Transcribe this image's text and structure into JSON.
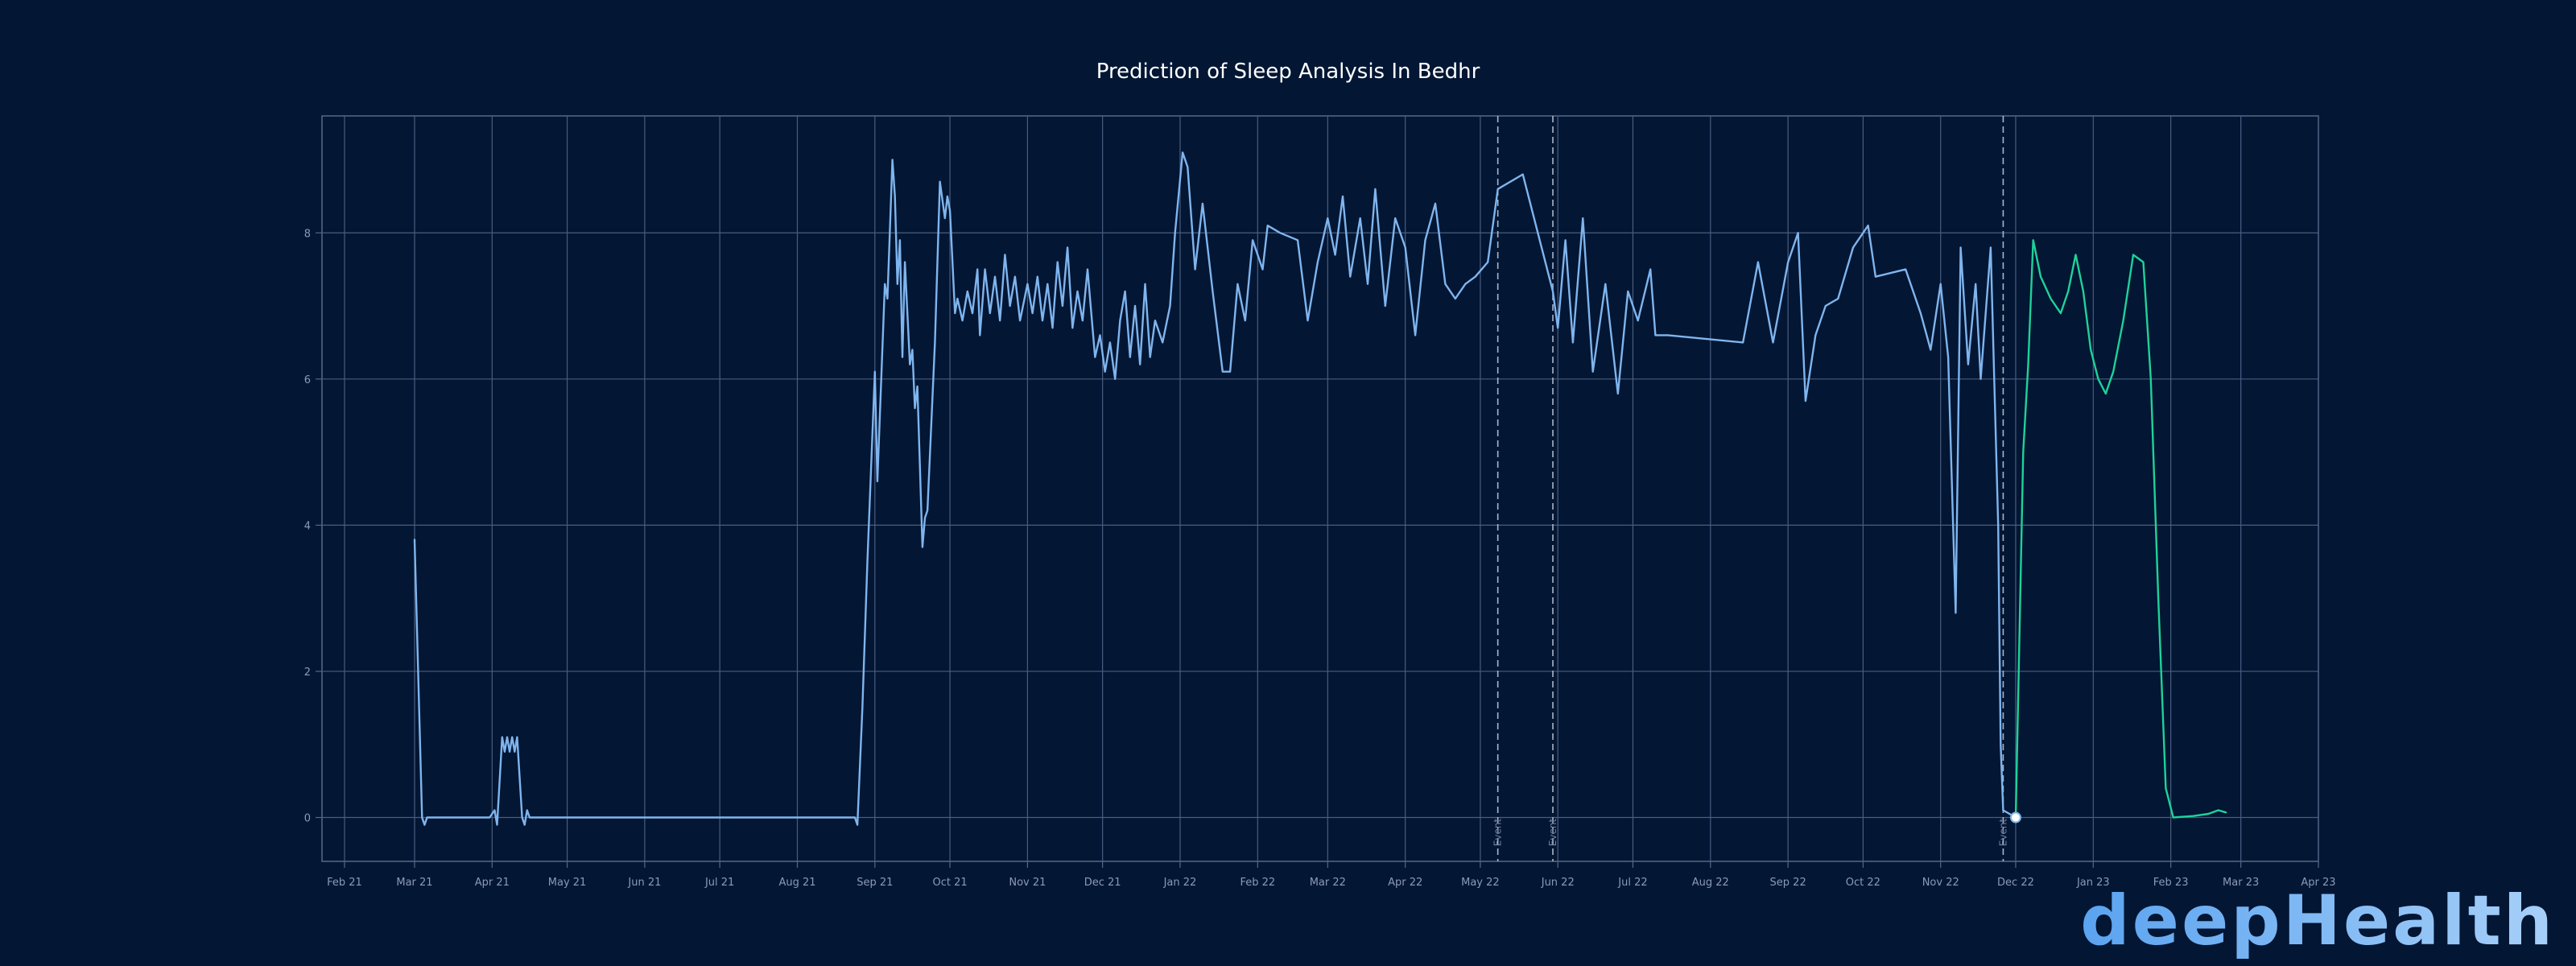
{
  "chart_data": {
    "type": "line",
    "title": "Prediction of Sleep Analysis In Bedhr",
    "xlabel": "",
    "ylabel": "",
    "x_range": [
      "2021-01-23",
      "2023-04-01"
    ],
    "ylim": [
      -0.6,
      9.6
    ],
    "grid": true,
    "legend": "none",
    "y_ticks": [
      0,
      2,
      4,
      6,
      8
    ],
    "x_ticks": [
      {
        "date": "2021-02-01",
        "label": "Feb 21"
      },
      {
        "date": "2021-03-01",
        "label": "Mar 21"
      },
      {
        "date": "2021-04-01",
        "label": "Apr 21"
      },
      {
        "date": "2021-05-01",
        "label": "May 21"
      },
      {
        "date": "2021-06-01",
        "label": "Jun 21"
      },
      {
        "date": "2021-07-01",
        "label": "Jul 21"
      },
      {
        "date": "2021-08-01",
        "label": "Aug 21"
      },
      {
        "date": "2021-09-01",
        "label": "Sep 21"
      },
      {
        "date": "2021-10-01",
        "label": "Oct 21"
      },
      {
        "date": "2021-11-01",
        "label": "Nov 21"
      },
      {
        "date": "2021-12-01",
        "label": "Dec 21"
      },
      {
        "date": "2022-01-01",
        "label": "Jan 22"
      },
      {
        "date": "2022-02-01",
        "label": "Feb 22"
      },
      {
        "date": "2022-03-01",
        "label": "Mar 22"
      },
      {
        "date": "2022-04-01",
        "label": "Apr 22"
      },
      {
        "date": "2022-05-01",
        "label": "May 22"
      },
      {
        "date": "2022-06-01",
        "label": "Jun 22"
      },
      {
        "date": "2022-07-01",
        "label": "Jul 22"
      },
      {
        "date": "2022-08-01",
        "label": "Aug 22"
      },
      {
        "date": "2022-09-01",
        "label": "Sep 22"
      },
      {
        "date": "2022-10-01",
        "label": "Oct 22"
      },
      {
        "date": "2022-11-01",
        "label": "Nov 22"
      },
      {
        "date": "2022-12-01",
        "label": "Dec 22"
      },
      {
        "date": "2023-01-01",
        "label": "Jan 23"
      },
      {
        "date": "2023-02-01",
        "label": "Feb 23"
      },
      {
        "date": "2023-03-01",
        "label": "Mar 23"
      },
      {
        "date": "2023-04-01",
        "label": "Apr 23"
      }
    ],
    "events": [
      {
        "date": "2022-05-08",
        "label": "Event"
      },
      {
        "date": "2022-05-30",
        "label": "Event"
      },
      {
        "date": "2022-11-26",
        "label": "Event"
      }
    ],
    "marker": {
      "date": "2022-12-01",
      "value": 0
    },
    "series": [
      {
        "color": "#7fb5ee",
        "points": [
          [
            "2021-03-01",
            3.8
          ],
          [
            "2021-03-04",
            0.0
          ],
          [
            "2021-03-05",
            -0.1
          ],
          [
            "2021-03-06",
            0.0
          ],
          [
            "2021-03-10",
            0.0
          ],
          [
            "2021-03-31",
            0.0
          ],
          [
            "2021-04-02",
            0.1
          ],
          [
            "2021-04-03",
            -0.1
          ],
          [
            "2021-04-05",
            1.1
          ],
          [
            "2021-04-06",
            0.9
          ],
          [
            "2021-04-07",
            1.1
          ],
          [
            "2021-04-08",
            0.9
          ],
          [
            "2021-04-09",
            1.1
          ],
          [
            "2021-04-10",
            0.9
          ],
          [
            "2021-04-11",
            1.1
          ],
          [
            "2021-04-13",
            0.0
          ],
          [
            "2021-04-14",
            -0.1
          ],
          [
            "2021-04-15",
            0.1
          ],
          [
            "2021-04-16",
            0.0
          ],
          [
            "2021-08-22",
            0.0
          ],
          [
            "2021-08-24",
            0.0
          ],
          [
            "2021-08-25",
            -0.1
          ],
          [
            "2021-08-27",
            1.5
          ],
          [
            "2021-08-29",
            3.5
          ],
          [
            "2021-09-01",
            6.1
          ],
          [
            "2021-09-02",
            4.6
          ],
          [
            "2021-09-05",
            7.3
          ],
          [
            "2021-09-06",
            7.1
          ],
          [
            "2021-09-08",
            9.0
          ],
          [
            "2021-09-09",
            8.5
          ],
          [
            "2021-09-10",
            7.3
          ],
          [
            "2021-09-11",
            7.9
          ],
          [
            "2021-09-12",
            6.3
          ],
          [
            "2021-09-13",
            7.6
          ],
          [
            "2021-09-15",
            6.2
          ],
          [
            "2021-09-16",
            6.4
          ],
          [
            "2021-09-17",
            5.6
          ],
          [
            "2021-09-18",
            5.9
          ],
          [
            "2021-09-20",
            3.7
          ],
          [
            "2021-09-21",
            4.1
          ],
          [
            "2021-09-22",
            4.2
          ],
          [
            "2021-09-25",
            6.5
          ],
          [
            "2021-09-27",
            8.7
          ],
          [
            "2021-09-29",
            8.2
          ],
          [
            "2021-09-30",
            8.5
          ],
          [
            "2021-10-01",
            8.3
          ],
          [
            "2021-10-03",
            6.9
          ],
          [
            "2021-10-04",
            7.1
          ],
          [
            "2021-10-06",
            6.8
          ],
          [
            "2021-10-08",
            7.2
          ],
          [
            "2021-10-10",
            6.9
          ],
          [
            "2021-10-12",
            7.5
          ],
          [
            "2021-10-13",
            6.6
          ],
          [
            "2021-10-15",
            7.5
          ],
          [
            "2021-10-17",
            6.9
          ],
          [
            "2021-10-19",
            7.4
          ],
          [
            "2021-10-21",
            6.8
          ],
          [
            "2021-10-23",
            7.7
          ],
          [
            "2021-10-25",
            7.0
          ],
          [
            "2021-10-27",
            7.4
          ],
          [
            "2021-10-29",
            6.8
          ],
          [
            "2021-11-01",
            7.3
          ],
          [
            "2021-11-03",
            6.9
          ],
          [
            "2021-11-05",
            7.4
          ],
          [
            "2021-11-07",
            6.8
          ],
          [
            "2021-11-09",
            7.3
          ],
          [
            "2021-11-11",
            6.7
          ],
          [
            "2021-11-13",
            7.6
          ],
          [
            "2021-11-15",
            7.0
          ],
          [
            "2021-11-17",
            7.8
          ],
          [
            "2021-11-19",
            6.7
          ],
          [
            "2021-11-21",
            7.2
          ],
          [
            "2021-11-23",
            6.8
          ],
          [
            "2021-11-25",
            7.5
          ],
          [
            "2021-11-28",
            6.3
          ],
          [
            "2021-11-30",
            6.6
          ],
          [
            "2021-12-02",
            6.1
          ],
          [
            "2021-12-04",
            6.5
          ],
          [
            "2021-12-06",
            6.0
          ],
          [
            "2021-12-08",
            6.8
          ],
          [
            "2021-12-10",
            7.2
          ],
          [
            "2021-12-12",
            6.3
          ],
          [
            "2021-12-14",
            7.0
          ],
          [
            "2021-12-16",
            6.2
          ],
          [
            "2021-12-18",
            7.3
          ],
          [
            "2021-12-20",
            6.3
          ],
          [
            "2021-12-22",
            6.8
          ],
          [
            "2021-12-25",
            6.5
          ],
          [
            "2021-12-28",
            7.0
          ],
          [
            "2021-12-30",
            8.0
          ],
          [
            "2022-01-02",
            9.1
          ],
          [
            "2022-01-04",
            8.9
          ],
          [
            "2022-01-07",
            7.5
          ],
          [
            "2022-01-10",
            8.4
          ],
          [
            "2022-01-14",
            7.2
          ],
          [
            "2022-01-18",
            6.1
          ],
          [
            "2022-01-21",
            6.1
          ],
          [
            "2022-01-24",
            7.3
          ],
          [
            "2022-01-27",
            6.8
          ],
          [
            "2022-01-30",
            7.9
          ],
          [
            "2022-02-03",
            7.5
          ],
          [
            "2022-02-05",
            8.1
          ],
          [
            "2022-02-10",
            8.0
          ],
          [
            "2022-02-17",
            7.9
          ],
          [
            "2022-02-21",
            6.8
          ],
          [
            "2022-02-25",
            7.6
          ],
          [
            "2022-03-01",
            8.2
          ],
          [
            "2022-03-04",
            7.7
          ],
          [
            "2022-03-07",
            8.5
          ],
          [
            "2022-03-10",
            7.4
          ],
          [
            "2022-03-14",
            8.2
          ],
          [
            "2022-03-17",
            7.3
          ],
          [
            "2022-03-20",
            8.6
          ],
          [
            "2022-03-24",
            7.0
          ],
          [
            "2022-03-28",
            8.2
          ],
          [
            "2022-04-01",
            7.8
          ],
          [
            "2022-04-05",
            6.6
          ],
          [
            "2022-04-09",
            7.9
          ],
          [
            "2022-04-13",
            8.4
          ],
          [
            "2022-04-17",
            7.3
          ],
          [
            "2022-04-21",
            7.1
          ],
          [
            "2022-04-25",
            7.3
          ],
          [
            "2022-04-29",
            7.4
          ],
          [
            "2022-05-04",
            7.6
          ],
          [
            "2022-05-08",
            8.6
          ],
          [
            "2022-05-18",
            8.8
          ],
          [
            "2022-05-30",
            7.2
          ],
          [
            "2022-06-01",
            6.7
          ],
          [
            "2022-06-04",
            7.9
          ],
          [
            "2022-06-07",
            6.5
          ],
          [
            "2022-06-11",
            8.2
          ],
          [
            "2022-06-15",
            6.1
          ],
          [
            "2022-06-20",
            7.3
          ],
          [
            "2022-06-25",
            5.8
          ],
          [
            "2022-06-29",
            7.2
          ],
          [
            "2022-07-03",
            6.8
          ],
          [
            "2022-07-08",
            7.5
          ],
          [
            "2022-07-10",
            6.6
          ],
          [
            "2022-07-15",
            6.6
          ],
          [
            "2022-08-14",
            6.5
          ],
          [
            "2022-08-20",
            7.6
          ],
          [
            "2022-08-26",
            6.5
          ],
          [
            "2022-09-01",
            7.6
          ],
          [
            "2022-09-05",
            8.0
          ],
          [
            "2022-09-08",
            5.7
          ],
          [
            "2022-09-12",
            6.6
          ],
          [
            "2022-09-16",
            7.0
          ],
          [
            "2022-09-21",
            7.1
          ],
          [
            "2022-09-27",
            7.8
          ],
          [
            "2022-10-03",
            8.1
          ],
          [
            "2022-10-06",
            7.4
          ],
          [
            "2022-10-18",
            7.5
          ],
          [
            "2022-10-24",
            6.9
          ],
          [
            "2022-10-28",
            6.4
          ],
          [
            "2022-11-01",
            7.3
          ],
          [
            "2022-11-04",
            6.3
          ],
          [
            "2022-11-07",
            2.8
          ],
          [
            "2022-11-09",
            7.8
          ],
          [
            "2022-11-12",
            6.2
          ],
          [
            "2022-11-15",
            7.3
          ],
          [
            "2022-11-17",
            6.0
          ],
          [
            "2022-11-21",
            7.8
          ],
          [
            "2022-11-24",
            4.0
          ],
          [
            "2022-11-25",
            1.0
          ],
          [
            "2022-11-26",
            0.1
          ],
          [
            "2022-12-01",
            0.0
          ]
        ]
      },
      {
        "color": "#1ed29a",
        "points": [
          [
            "2022-12-01",
            0.0
          ],
          [
            "2022-12-04",
            5.0
          ],
          [
            "2022-12-06",
            6.2
          ],
          [
            "2022-12-08",
            7.9
          ],
          [
            "2022-12-11",
            7.4
          ],
          [
            "2022-12-15",
            7.1
          ],
          [
            "2022-12-19",
            6.9
          ],
          [
            "2022-12-22",
            7.2
          ],
          [
            "2022-12-25",
            7.7
          ],
          [
            "2022-12-28",
            7.2
          ],
          [
            "2022-12-31",
            6.4
          ],
          [
            "2023-01-03",
            6.0
          ],
          [
            "2023-01-06",
            5.8
          ],
          [
            "2023-01-09",
            6.1
          ],
          [
            "2023-01-13",
            6.8
          ],
          [
            "2023-01-17",
            7.7
          ],
          [
            "2023-01-21",
            7.6
          ],
          [
            "2023-01-24",
            6.0
          ],
          [
            "2023-01-27",
            3.0
          ],
          [
            "2023-01-30",
            0.4
          ],
          [
            "2023-02-02",
            0.0
          ],
          [
            "2023-02-10",
            0.02
          ],
          [
            "2023-02-16",
            0.05
          ],
          [
            "2023-02-20",
            0.1
          ],
          [
            "2023-02-23",
            0.07
          ]
        ]
      }
    ]
  },
  "brand": {
    "text": "deepHealth",
    "gradient": [
      "#5aa3f0",
      "#a8d0f8"
    ]
  }
}
